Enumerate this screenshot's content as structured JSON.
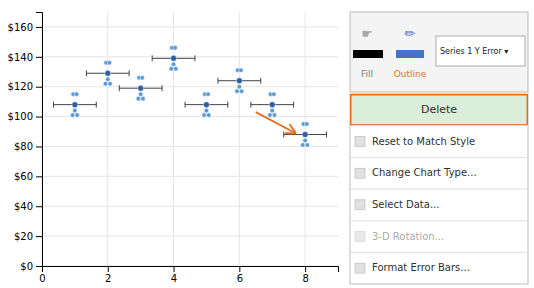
{
  "chart_data": {
    "type": "scatter",
    "xlim": [
      0,
      9
    ],
    "ylim": [
      0,
      170
    ],
    "xticks": [
      0,
      2,
      4,
      6,
      8
    ],
    "yticks": [
      {
        "value": 0,
        "label": "$0"
      },
      {
        "value": 20,
        "label": "$20"
      },
      {
        "value": 40,
        "label": "$40"
      },
      {
        "value": 60,
        "label": "$60"
      },
      {
        "value": 80,
        "label": "$80"
      },
      {
        "value": 100,
        "label": "$100"
      },
      {
        "value": 120,
        "label": "$120"
      },
      {
        "value": 140,
        "label": "$140"
      },
      {
        "value": 160,
        "label": "$160"
      }
    ],
    "grid": true,
    "series": [
      {
        "type": "scatter",
        "color": "#5B9BD5",
        "x": [
          0.93,
          1,
          1.07,
          0.95,
          1.05,
          1.93,
          2,
          2.07,
          1.95,
          2.05,
          2.93,
          3,
          3.07,
          2.95,
          3.05,
          3.93,
          4,
          4.07,
          3.95,
          4.05,
          4.93,
          5,
          5.07,
          4.95,
          5.05,
          5.93,
          6,
          6.07,
          5.95,
          6.05,
          6.93,
          7,
          7.07,
          6.95,
          7.05,
          7.93,
          8,
          8.07,
          7.95,
          8.05
        ],
        "values": [
          101,
          104,
          101,
          115,
          115,
          122,
          125,
          122,
          136,
          136,
          112,
          115,
          112,
          126,
          126,
          132,
          135,
          132,
          146,
          146,
          101,
          104,
          101,
          115,
          115,
          117,
          120,
          117,
          131,
          131,
          101,
          104,
          101,
          115,
          115,
          81,
          84,
          81,
          95,
          95
        ]
      },
      {
        "type": "scatter",
        "color": "#2E5FA3",
        "x": [
          1,
          2,
          3,
          4,
          5,
          6,
          7,
          8
        ],
        "values": [
          108,
          129,
          119,
          139,
          108,
          124,
          108,
          88
        ],
        "xerr": [
          0.65,
          0.65,
          0.65,
          0.65,
          0.65,
          0.65,
          0.65,
          0.65
        ]
      }
    ],
    "arrow": {
      "start": [
        6.5,
        103
      ],
      "end": [
        7.7,
        89
      ],
      "color": "#E07020"
    },
    "toolbar": {
      "icons": [
        "☛",
        "✏"
      ],
      "labels": [
        "Fill",
        "Outline"
      ],
      "dropdown": "Series 1 Y Error ▾"
    },
    "context_menu": [
      {
        "label": "Delete",
        "highlight": true,
        "disabled": false
      },
      {
        "label": "Reset to Match Style",
        "highlight": false,
        "disabled": false
      },
      {
        "label": "Change Chart Type...",
        "highlight": false,
        "disabled": false
      },
      {
        "label": "Select Data...",
        "highlight": false,
        "disabled": false
      },
      {
        "label": "3-D Rotation...",
        "highlight": false,
        "disabled": true
      },
      {
        "label": "Format Error Bars...",
        "highlight": false,
        "disabled": false
      }
    ]
  }
}
